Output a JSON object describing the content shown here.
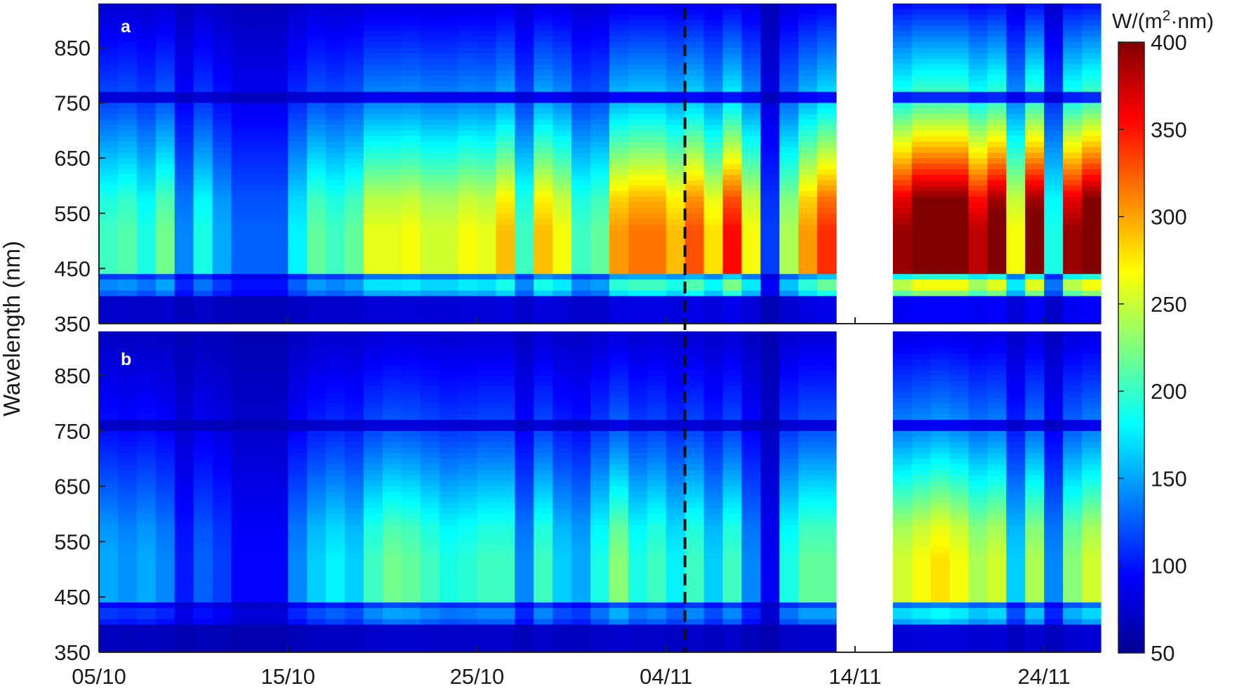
{
  "chart_data": {
    "type": "heatmap",
    "ylabel": "Wavelength (nm)",
    "x_tick_labels": [
      "05/10",
      "15/10",
      "25/10",
      "04/11",
      "14/11",
      "24/11"
    ],
    "y_tick_labels": [
      "350",
      "450",
      "550",
      "650",
      "750",
      "850"
    ],
    "ylim": [
      350,
      930
    ],
    "colorbar": {
      "colormap": "jet",
      "range": [
        50,
        400
      ],
      "ticks": [
        "50",
        "100",
        "150",
        "200",
        "250",
        "300",
        "350",
        "400"
      ],
      "unit_prefix": "W/(m",
      "unit_sup": "2",
      "unit_suffix": "·nm)"
    },
    "marker_day": 31,
    "day_blocks": [
      [
        0,
        6
      ],
      [
        7,
        13
      ],
      [
        14,
        20
      ],
      [
        21,
        27
      ],
      [
        28,
        34
      ],
      [
        35,
        38
      ],
      [
        42,
        52
      ]
    ],
    "day_levels_a": [
      0.55,
      0.58,
      0.5,
      0.62,
      0.3,
      0.5,
      0.35,
      0.25,
      0.25,
      0.25,
      0.45,
      0.6,
      0.55,
      0.6,
      0.78,
      0.78,
      0.8,
      0.75,
      0.75,
      0.8,
      0.78,
      0.9,
      0.55,
      0.9,
      0.8,
      0.55,
      0.6,
      0.95,
      1.0,
      1.0,
      0.9,
      1.05,
      0.85,
      1.15,
      0.8,
      0.2,
      0.7,
      0.95,
      1.1,
      0,
      0,
      0,
      1.3,
      1.45,
      1.45,
      1.45,
      1.25,
      1.4,
      0.8,
      1.4,
      0.5,
      1.3,
      1.45,
      1.4
    ],
    "day_levels_b": [
      0.35,
      0.32,
      0.35,
      0.3,
      0.15,
      0.25,
      0.2,
      0.12,
      0.12,
      0.12,
      0.3,
      0.4,
      0.45,
      0.4,
      0.55,
      0.62,
      0.6,
      0.55,
      0.5,
      0.52,
      0.55,
      0.55,
      0.3,
      0.55,
      0.4,
      0.35,
      0.5,
      0.65,
      0.5,
      0.55,
      0.45,
      0.55,
      0.4,
      0.55,
      0.3,
      0.1,
      0.5,
      0.6,
      0.6,
      0,
      0,
      0,
      0.75,
      0.8,
      0.85,
      0.8,
      0.7,
      0.75,
      0.4,
      0.7,
      0.3,
      0.65,
      0.75,
      0.8
    ],
    "panels": [
      {
        "letter": "a",
        "level_key": "day_levels_a"
      },
      {
        "letter": "b",
        "level_key": "day_levels_b"
      }
    ]
  }
}
